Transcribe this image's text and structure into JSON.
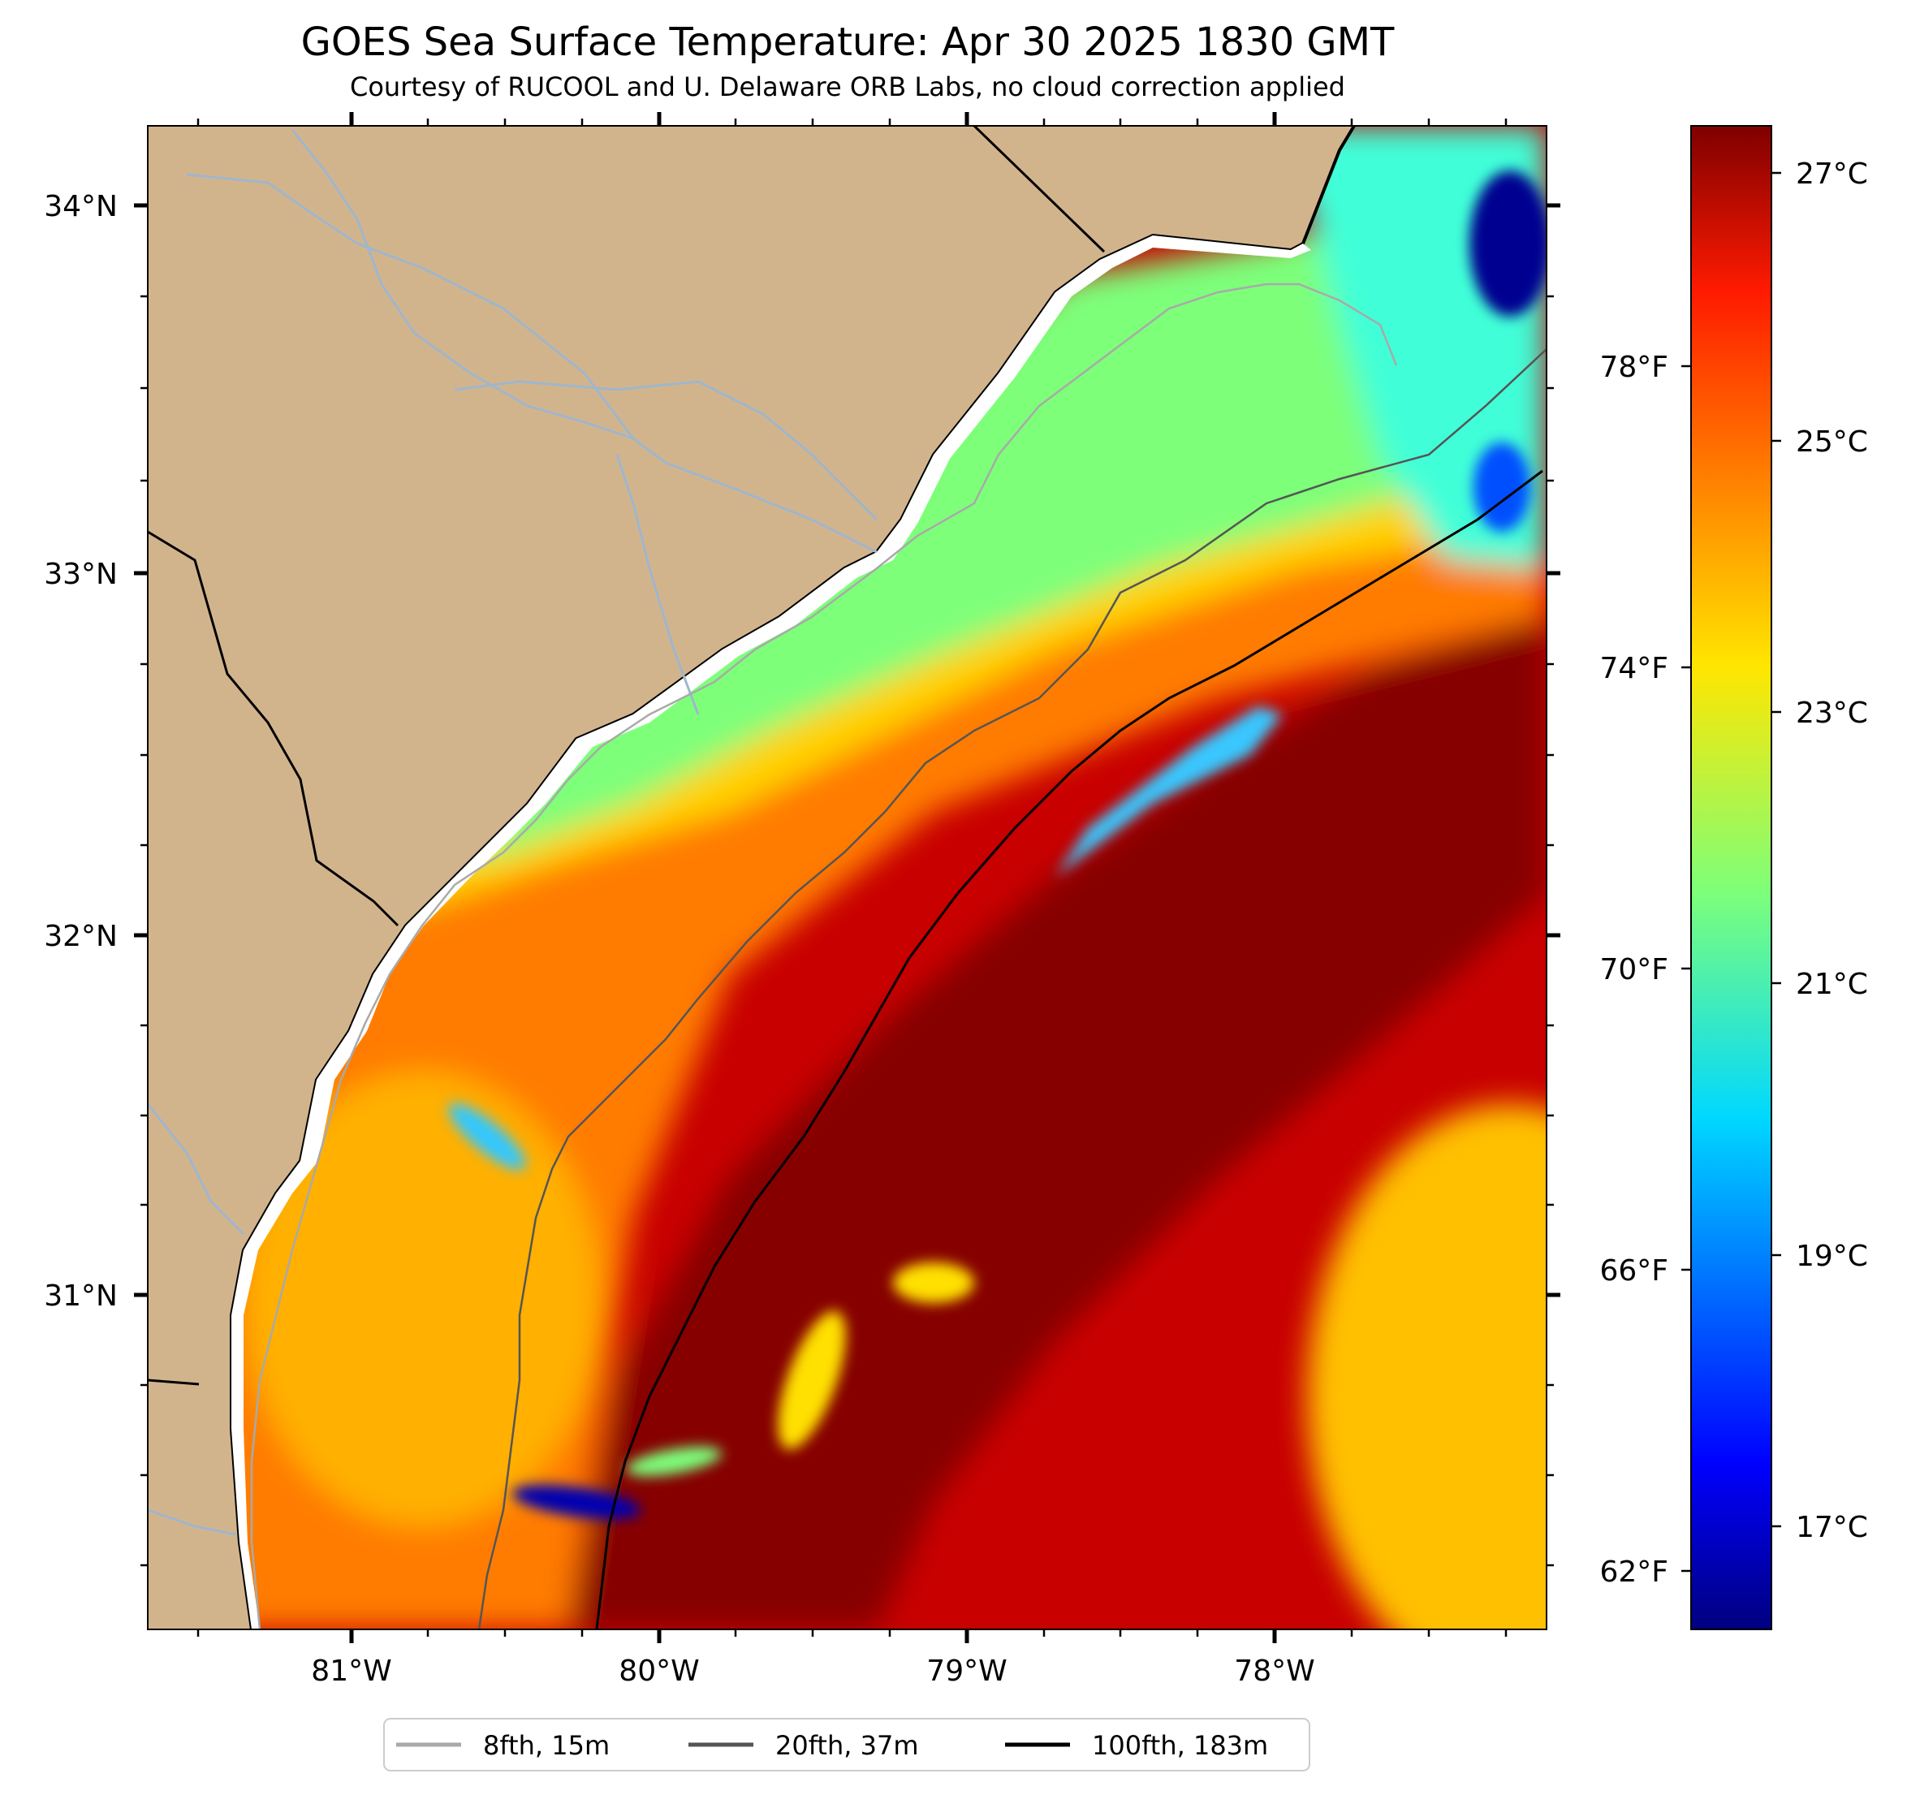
{
  "title": "GOES Sea Surface Temperature: Apr 30 2025 1830 GMT",
  "subtitle": "Courtesy of RUCOOL and U. Delaware ORB Labs, no cloud correction applied",
  "map": {
    "lon_range": [
      -81.66,
      -77.12
    ],
    "lat_range": [
      30.09,
      34.22
    ],
    "land_color": "#d2b48c",
    "river_color": "#9fb6cd",
    "lon_ticks": [
      "81°W",
      "80°W",
      "79°W",
      "78°W"
    ],
    "lat_ticks": [
      "34°N",
      "33°N",
      "32°N",
      "31°N"
    ]
  },
  "colorbar": {
    "colormap": "jet",
    "range_c": [
      16.2,
      27.5
    ],
    "celsius_ticks": [
      "27°C",
      "25°C",
      "23°C",
      "21°C",
      "19°C",
      "17°C"
    ],
    "fahrenheit_ticks": [
      "78°F",
      "74°F",
      "70°F",
      "66°F",
      "62°F"
    ]
  },
  "legend": [
    {
      "label": "8fth, 15m",
      "color": "#a9a9a9"
    },
    {
      "label": "20fth, 37m",
      "color": "#555555"
    },
    {
      "label": "100fth, 183m",
      "color": "#000000"
    }
  ]
}
